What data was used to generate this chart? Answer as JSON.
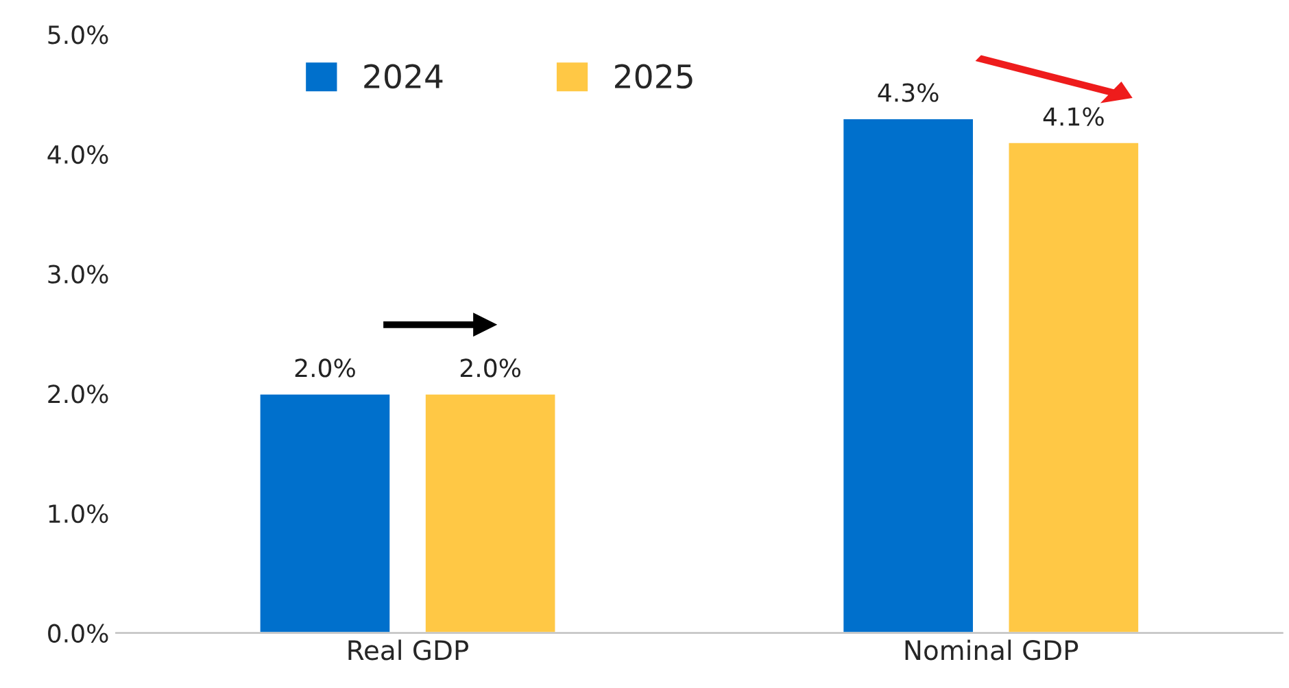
{
  "chart_data": {
    "type": "bar",
    "categories": [
      "Real GDP",
      "Nominal GDP"
    ],
    "series": [
      {
        "name": "2024",
        "color": "#0070cc",
        "values": [
          2.0,
          4.3
        ]
      },
      {
        "name": "2025",
        "color": "#ffc845",
        "values": [
          2.0,
          4.1
        ]
      }
    ],
    "ylim": [
      0,
      5
    ],
    "yticks": [
      {
        "value": 0,
        "label": "0.0%"
      },
      {
        "value": 1,
        "label": "1.0%"
      },
      {
        "value": 2,
        "label": "2.0%"
      },
      {
        "value": 3,
        "label": "3.0%"
      },
      {
        "value": 4,
        "label": "4.0%"
      },
      {
        "value": 5,
        "label": "5.0%"
      }
    ],
    "value_labels": [
      [
        "2.0%",
        "4.3%"
      ],
      [
        "2.0%",
        "4.1%"
      ]
    ],
    "legend": "top",
    "grid": false
  }
}
